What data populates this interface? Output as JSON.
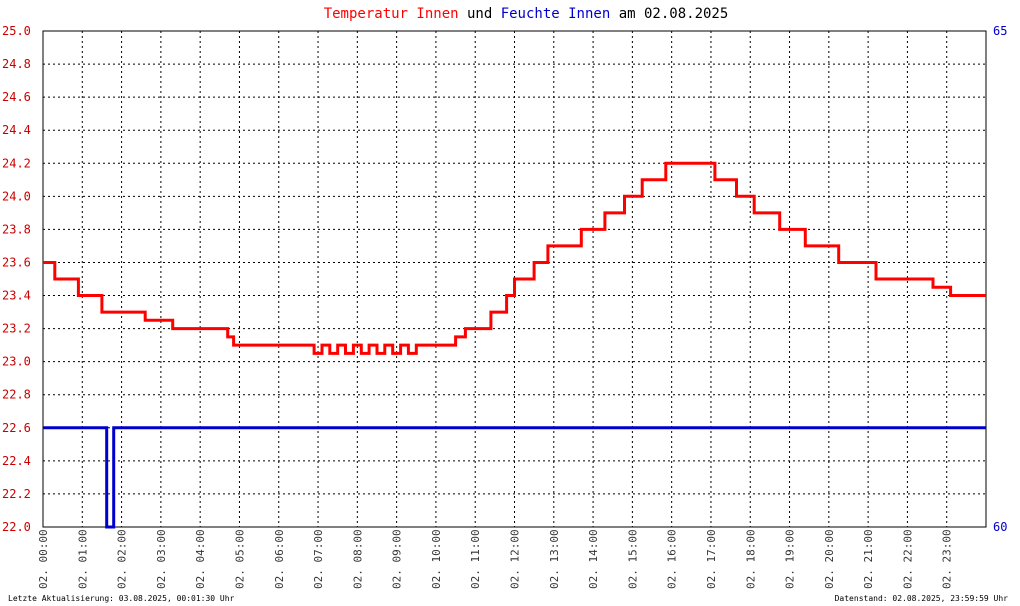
{
  "chart_data": {
    "type": "line",
    "title": {
      "part1": "Temperatur Innen",
      "part2": " und ",
      "part3": "Feuchte Innen",
      "part4": " am 02.08.2025"
    },
    "x_ticks": [
      "02. 00:00",
      "02. 01:00",
      "02. 02:00",
      "02. 03:00",
      "02. 04:00",
      "02. 05:00",
      "02. 06:00",
      "02. 07:00",
      "02. 08:00",
      "02. 09:00",
      "02. 10:00",
      "02. 11:00",
      "02. 12:00",
      "02. 13:00",
      "02. 14:00",
      "02. 15:00",
      "02. 16:00",
      "02. 17:00",
      "02. 18:00",
      "02. 19:00",
      "02. 20:00",
      "02. 21:00",
      "02. 22:00",
      "02. 23:00"
    ],
    "x_range_hours": [
      0,
      24
    ],
    "y_left": {
      "range": [
        22.0,
        25.0
      ],
      "ticks": [
        "22.0",
        "22.2",
        "22.4",
        "22.6",
        "22.8",
        "23.0",
        "23.2",
        "23.4",
        "23.6",
        "23.8",
        "24.0",
        "24.2",
        "24.4",
        "24.6",
        "24.8",
        "25.0"
      ]
    },
    "y_right": {
      "range": [
        60,
        65
      ],
      "ticks": [
        "60",
        "65"
      ]
    },
    "grid": true,
    "series": [
      {
        "name": "Temperatur Innen",
        "axis": "left",
        "color": "#ff0000",
        "points": [
          [
            0.0,
            23.6
          ],
          [
            0.3,
            23.6
          ],
          [
            0.3,
            23.5
          ],
          [
            0.9,
            23.5
          ],
          [
            0.9,
            23.4
          ],
          [
            1.5,
            23.4
          ],
          [
            1.5,
            23.3
          ],
          [
            2.6,
            23.3
          ],
          [
            2.6,
            23.25
          ],
          [
            3.3,
            23.25
          ],
          [
            3.3,
            23.2
          ],
          [
            4.7,
            23.2
          ],
          [
            4.7,
            23.15
          ],
          [
            4.85,
            23.15
          ],
          [
            4.85,
            23.1
          ],
          [
            6.9,
            23.1
          ],
          [
            6.9,
            23.05
          ],
          [
            7.1,
            23.05
          ],
          [
            7.1,
            23.1
          ],
          [
            7.3,
            23.1
          ],
          [
            7.3,
            23.05
          ],
          [
            7.5,
            23.05
          ],
          [
            7.5,
            23.1
          ],
          [
            7.7,
            23.1
          ],
          [
            7.7,
            23.05
          ],
          [
            7.9,
            23.05
          ],
          [
            7.9,
            23.1
          ],
          [
            8.1,
            23.1
          ],
          [
            8.1,
            23.05
          ],
          [
            8.3,
            23.05
          ],
          [
            8.3,
            23.1
          ],
          [
            8.5,
            23.1
          ],
          [
            8.5,
            23.05
          ],
          [
            8.7,
            23.05
          ],
          [
            8.7,
            23.1
          ],
          [
            8.9,
            23.1
          ],
          [
            8.9,
            23.05
          ],
          [
            9.1,
            23.05
          ],
          [
            9.1,
            23.1
          ],
          [
            9.3,
            23.1
          ],
          [
            9.3,
            23.05
          ],
          [
            9.5,
            23.05
          ],
          [
            9.5,
            23.1
          ],
          [
            10.5,
            23.1
          ],
          [
            10.5,
            23.15
          ],
          [
            10.75,
            23.15
          ],
          [
            10.75,
            23.2
          ],
          [
            11.4,
            23.2
          ],
          [
            11.4,
            23.3
          ],
          [
            11.8,
            23.3
          ],
          [
            11.8,
            23.4
          ],
          [
            12.0,
            23.4
          ],
          [
            12.0,
            23.5
          ],
          [
            12.5,
            23.5
          ],
          [
            12.5,
            23.6
          ],
          [
            12.85,
            23.6
          ],
          [
            12.85,
            23.7
          ],
          [
            13.7,
            23.7
          ],
          [
            13.7,
            23.8
          ],
          [
            14.3,
            23.8
          ],
          [
            14.3,
            23.9
          ],
          [
            14.8,
            23.9
          ],
          [
            14.8,
            24.0
          ],
          [
            15.25,
            24.0
          ],
          [
            15.25,
            24.1
          ],
          [
            15.85,
            24.1
          ],
          [
            15.85,
            24.2
          ],
          [
            17.1,
            24.2
          ],
          [
            17.1,
            24.1
          ],
          [
            17.65,
            24.1
          ],
          [
            17.65,
            24.0
          ],
          [
            18.1,
            24.0
          ],
          [
            18.1,
            23.9
          ],
          [
            18.75,
            23.9
          ],
          [
            18.75,
            23.8
          ],
          [
            19.4,
            23.8
          ],
          [
            19.4,
            23.7
          ],
          [
            20.25,
            23.7
          ],
          [
            20.25,
            23.6
          ],
          [
            21.2,
            23.6
          ],
          [
            21.2,
            23.5
          ],
          [
            22.65,
            23.5
          ],
          [
            22.65,
            23.45
          ],
          [
            23.1,
            23.45
          ],
          [
            23.1,
            23.4
          ],
          [
            24.0,
            23.4
          ]
        ]
      },
      {
        "name": "Feuchte Innen",
        "axis": "right",
        "color": "#0000cc",
        "points": [
          [
            0.0,
            61.0
          ],
          [
            1.62,
            61.0
          ],
          [
            1.62,
            60.0
          ],
          [
            1.8,
            60.0
          ],
          [
            1.8,
            61.0
          ],
          [
            24.0,
            61.0
          ]
        ]
      }
    ]
  },
  "footer": {
    "left": "Letzte Aktualisierung: 03.08.2025, 00:01:30 Uhr",
    "right": "Datenstand: 02.08.2025, 23:59:59 Uhr"
  },
  "colors": {
    "temperature": "#ff0000",
    "humidity": "#0000cc",
    "grid": "#000000"
  }
}
